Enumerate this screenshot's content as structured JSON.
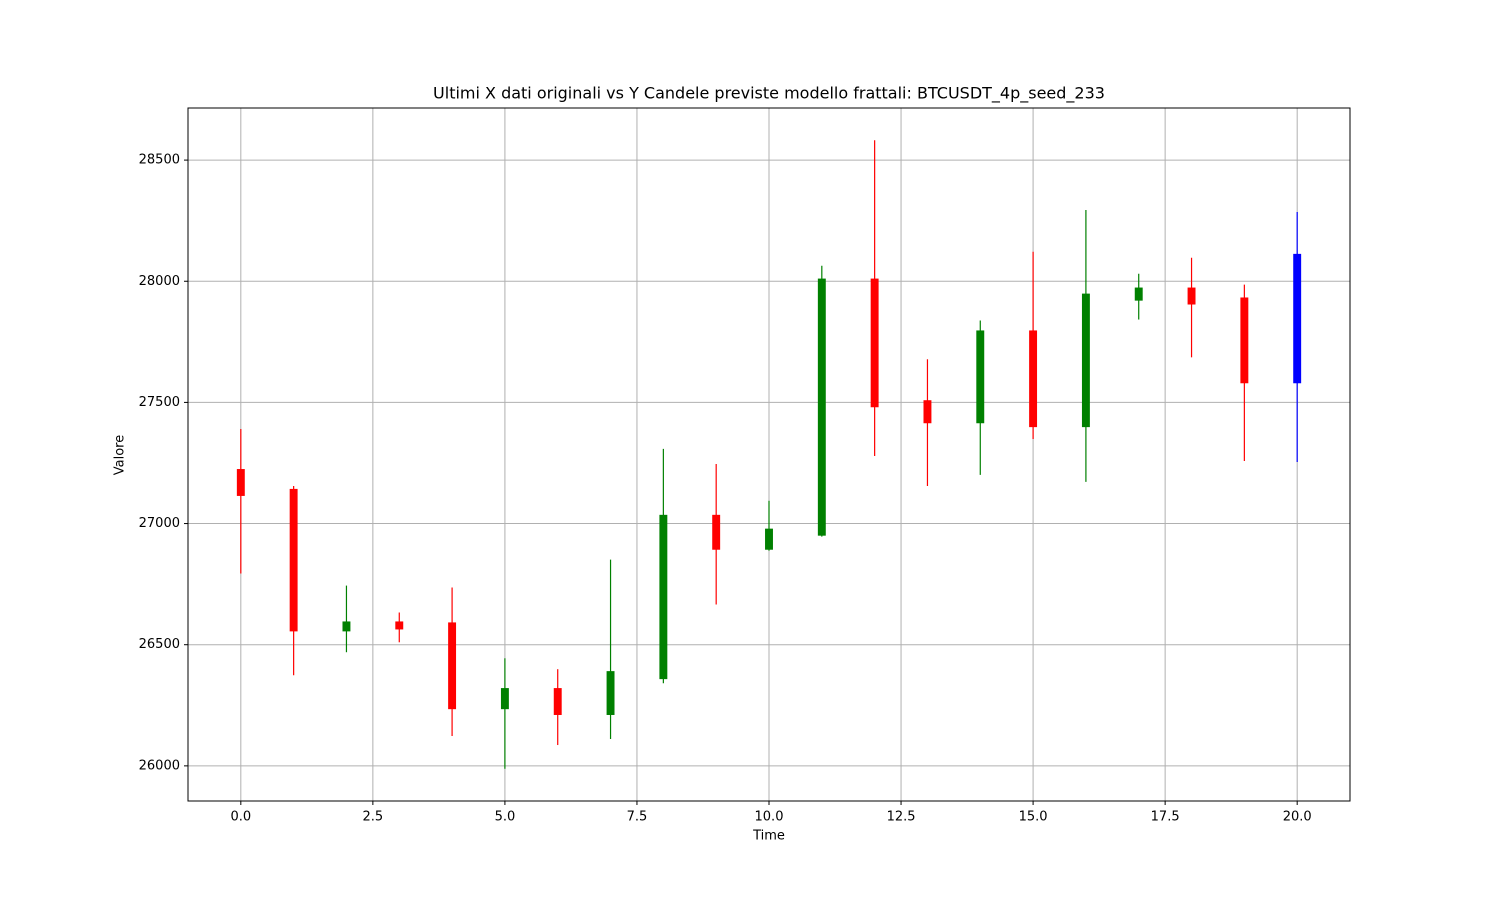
{
  "chart_data": {
    "type": "candlestick",
    "title": "Ultimi X dati originali vs Y Candele previste modello frattali: BTCUSDT_4p_seed_233",
    "x_label": "Time",
    "y_label": "Valore",
    "x": [
      0,
      1,
      2,
      3,
      4,
      5,
      6,
      7,
      8,
      9,
      10,
      11,
      12,
      13,
      14,
      15,
      16,
      17,
      18,
      19,
      20
    ],
    "open": [
      27225,
      27143,
      26555,
      26596,
      26592,
      26234,
      26321,
      26210,
      26358,
      27036,
      26892,
      26950,
      28011,
      27509,
      27414,
      27797,
      27398,
      27920,
      27974,
      27933,
      27579
    ],
    "high": [
      27390,
      27155,
      26744,
      26633,
      26736,
      26444,
      26399,
      26851,
      27308,
      27246,
      27094,
      28064,
      28582,
      27678,
      27838,
      28122,
      28294,
      28031,
      28097,
      27986,
      28286
    ],
    "low": [
      26794,
      26374,
      26469,
      26510,
      26123,
      25988,
      26086,
      26111,
      26341,
      26666,
      26888,
      26946,
      27279,
      27155,
      27201,
      27349,
      27172,
      27842,
      27686,
      27258,
      27254
    ],
    "close": [
      27114,
      26555,
      26596,
      26563,
      26234,
      26321,
      26210,
      26391,
      27036,
      26892,
      26979,
      28011,
      27480,
      27414,
      27797,
      27398,
      27949,
      27974,
      27904,
      27579,
      28113
    ],
    "colors": [
      "red",
      "red",
      "green",
      "red",
      "red",
      "green",
      "red",
      "green",
      "green",
      "red",
      "green",
      "green",
      "red",
      "red",
      "green",
      "red",
      "green",
      "green",
      "red",
      "red",
      "blue"
    ],
    "xlim": [
      -1,
      21
    ],
    "xticks": [
      {
        "value": 0,
        "label": "0.0"
      },
      2.5,
      {
        "value": 5,
        "label": "5.0"
      },
      7.5,
      {
        "value": 10,
        "label": "10.0"
      },
      12.5,
      {
        "value": 15,
        "label": "15.0"
      },
      17.5,
      {
        "value": 20,
        "label": "20.0"
      }
    ],
    "ylim": [
      25855,
      28715
    ],
    "yticks": [
      26000,
      26500,
      27000,
      27500,
      28000,
      28500
    ],
    "grid": true
  }
}
